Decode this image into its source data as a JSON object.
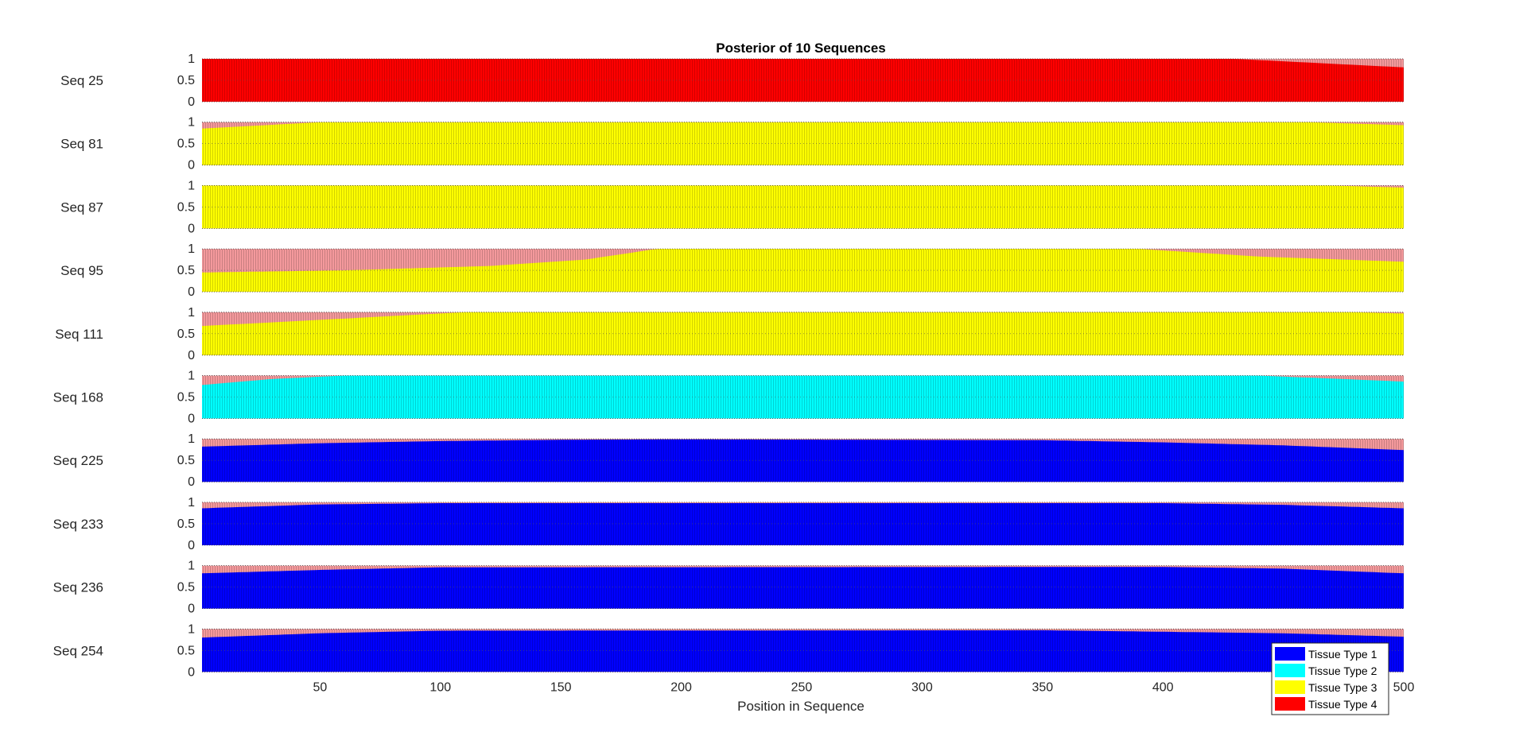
{
  "chart_data": {
    "type": "area",
    "title": "Posterior of 10 Sequences",
    "xlabel": "Position in Sequence",
    "ylabel": "",
    "xlim": [
      1,
      500
    ],
    "ylim": [
      0,
      1
    ],
    "x_ticks": [
      50,
      100,
      150,
      200,
      250,
      300,
      350,
      400,
      500
    ],
    "y_ticks": [
      0,
      0.5,
      1
    ],
    "y_tick_labels": [
      "0",
      "0.5",
      "1"
    ],
    "stacked": true,
    "legend": {
      "placement": "bottom-right",
      "entries": [
        {
          "label": "Tissue Type 1",
          "color": "#0000ff"
        },
        {
          "label": "Tissue Type 2",
          "color": "#00ffff"
        },
        {
          "label": "Tissue Type 3",
          "color": "#ffff00"
        },
        {
          "label": "Tissue Type 4",
          "color": "#ff0000"
        }
      ]
    },
    "panels": [
      {
        "label": "Seq 25",
        "main_type": "Tissue Type 4",
        "main_color": "#ff0000",
        "x": [
          1,
          430,
          500
        ],
        "main_fraction": [
          1.0,
          1.0,
          0.8
        ]
      },
      {
        "label": "Seq 81",
        "main_type": "Tissue Type 3",
        "main_color": "#ffff00",
        "x": [
          1,
          50,
          460,
          500
        ],
        "main_fraction": [
          0.85,
          1.0,
          1.0,
          0.93
        ]
      },
      {
        "label": "Seq 87",
        "main_type": "Tissue Type 3",
        "main_color": "#ffff00",
        "x": [
          1,
          470,
          500
        ],
        "main_fraction": [
          1.0,
          1.0,
          0.95
        ]
      },
      {
        "label": "Seq 95",
        "main_type": "Tissue Type 3",
        "main_color": "#ffff00",
        "x": [
          1,
          60,
          120,
          160,
          190,
          390,
          440,
          500
        ],
        "main_fraction": [
          0.45,
          0.5,
          0.6,
          0.75,
          1.0,
          1.0,
          0.82,
          0.7
        ]
      },
      {
        "label": "Seq 111",
        "main_type": "Tissue Type 3",
        "main_color": "#ffff00",
        "x": [
          1,
          60,
          110,
          480,
          500
        ],
        "main_fraction": [
          0.68,
          0.85,
          1.0,
          1.0,
          0.97
        ]
      },
      {
        "label": "Seq 168",
        "main_type": "Tissue Type 2",
        "main_color": "#00ffff",
        "x": [
          1,
          30,
          60,
          440,
          500
        ],
        "main_fraction": [
          0.78,
          0.92,
          1.0,
          1.0,
          0.86
        ]
      },
      {
        "label": "Seq 225",
        "main_type": "Tissue Type 1",
        "main_color": "#0000ff",
        "x": [
          1,
          50,
          100,
          150,
          200,
          350,
          400,
          450,
          500
        ],
        "main_fraction": [
          0.82,
          0.9,
          0.95,
          0.98,
          0.99,
          0.97,
          0.92,
          0.85,
          0.74
        ]
      },
      {
        "label": "Seq 233",
        "main_type": "Tissue Type 1",
        "main_color": "#0000ff",
        "x": [
          1,
          50,
          100,
          400,
          450,
          500
        ],
        "main_fraction": [
          0.86,
          0.95,
          0.98,
          0.98,
          0.94,
          0.86
        ]
      },
      {
        "label": "Seq 236",
        "main_type": "Tissue Type 1",
        "main_color": "#0000ff",
        "x": [
          1,
          50,
          100,
          400,
          450,
          500
        ],
        "main_fraction": [
          0.82,
          0.9,
          0.96,
          0.97,
          0.93,
          0.82
        ]
      },
      {
        "label": "Seq 254",
        "main_type": "Tissue Type 1",
        "main_color": "#0000ff",
        "x": [
          1,
          50,
          100,
          350,
          450,
          500
        ],
        "main_fraction": [
          0.8,
          0.9,
          0.96,
          0.97,
          0.9,
          0.82
        ]
      }
    ],
    "remainder_color": "#f4999c"
  }
}
